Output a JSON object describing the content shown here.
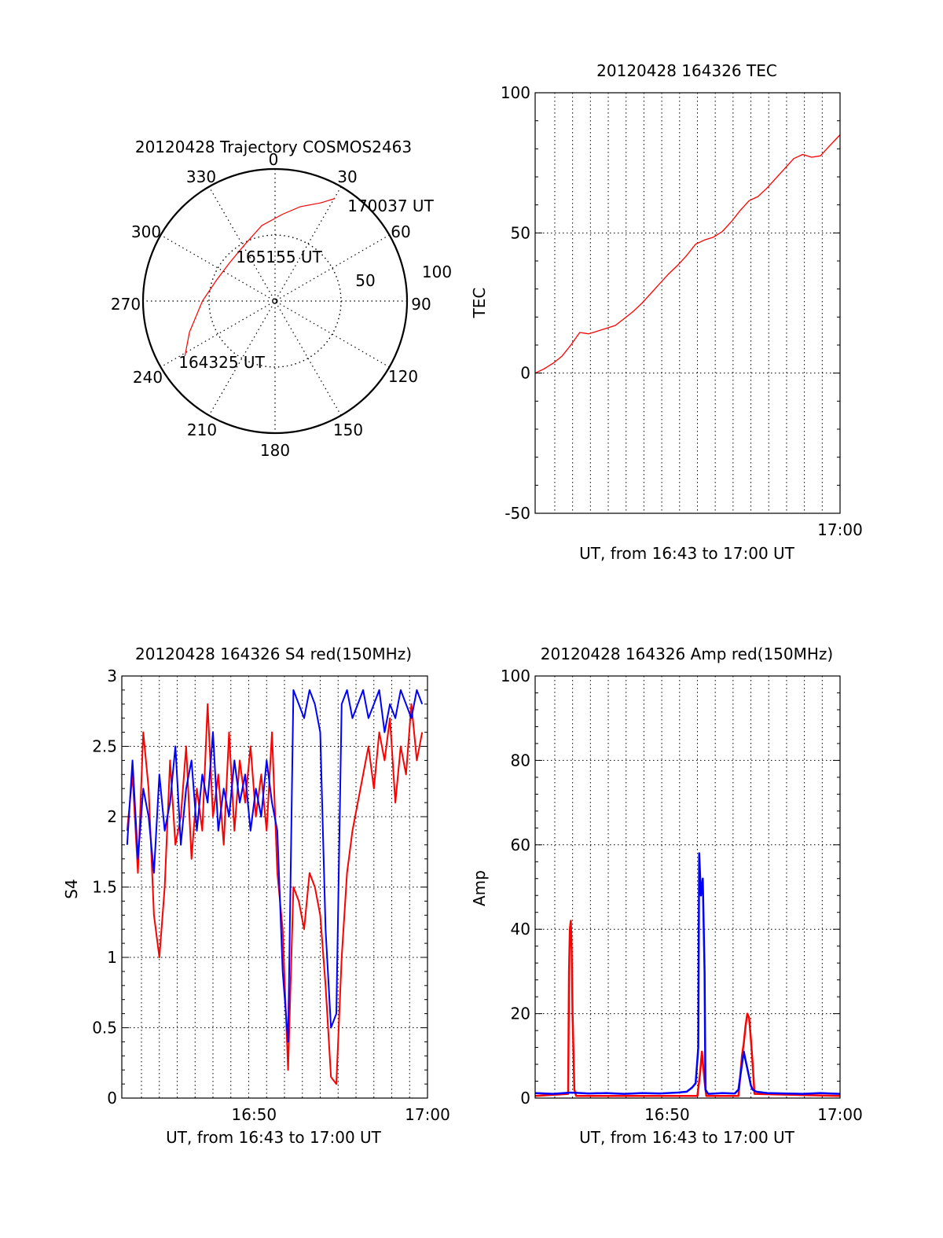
{
  "colors": {
    "red": "#ff0000",
    "blue": "#0000ff",
    "axis": "#000000",
    "grid": "#000000"
  },
  "chart_data": [
    {
      "id": "trajectory",
      "type": "polar",
      "title": "20120428 Trajectory COSMOS2463",
      "azimuth_labels": [
        "0",
        "30",
        "60",
        "90",
        "120",
        "150",
        "180",
        "210",
        "240",
        "270",
        "300",
        "330"
      ],
      "radius_labels": [
        "50",
        "100"
      ],
      "rlim": [
        0,
        100
      ],
      "grid": true,
      "series": [
        {
          "color": "#ff0000",
          "points": [
            {
              "az": 238.6,
              "r": 80
            },
            {
              "az": 250,
              "r": 69
            },
            {
              "az": 270,
              "r": 55
            },
            {
              "az": 290,
              "r": 47
            },
            {
              "az": 310,
              "r": 45
            },
            {
              "az": 330,
              "r": 48
            },
            {
              "az": 350,
              "r": 58
            },
            {
              "az": 5,
              "r": 66
            },
            {
              "az": 15,
              "r": 74
            },
            {
              "az": 25,
              "r": 82
            },
            {
              "az": 30.3,
              "r": 90
            }
          ]
        }
      ],
      "annotations": [
        {
          "text": "170037 UT",
          "az": 36,
          "r": 96
        },
        {
          "text": "165155 UT",
          "az": 352,
          "r": 34
        },
        {
          "text": "164325 UT",
          "az": 222,
          "r": 55
        }
      ]
    },
    {
      "id": "tec",
      "type": "line",
      "title": "20120428 164326 TEC",
      "xlabel": "UT, from 16:43 to 17:00 UT",
      "ylabel": "TEC",
      "xlim": [
        0,
        17.1
      ],
      "ylim": [
        -50,
        100
      ],
      "xticks": [
        {
          "x": 17.1,
          "label": "17:00"
        }
      ],
      "yticks": [
        -50,
        0,
        50,
        100
      ],
      "grid": true,
      "series": [
        {
          "color": "#ff0000",
          "x": [
            0,
            0.5,
            1,
            1.5,
            2,
            2.5,
            3,
            3.5,
            4,
            4.5,
            5,
            5.5,
            6,
            6.5,
            7,
            7.5,
            8,
            8.5,
            9,
            9.5,
            10,
            10.5,
            11,
            11.5,
            12,
            12.5,
            13,
            13.5,
            14,
            14.5,
            15,
            15.5,
            16,
            16.5,
            17.1
          ],
          "y": [
            0,
            1.5,
            3.5,
            6,
            10,
            14.5,
            14,
            15,
            16,
            17,
            19.5,
            22,
            25,
            28.5,
            32,
            35.5,
            38.5,
            42,
            46,
            47.5,
            48.5,
            50.5,
            54,
            58,
            61.5,
            63,
            66,
            69.5,
            73,
            76.5,
            78,
            77,
            77.5,
            81,
            85
          ]
        }
      ]
    },
    {
      "id": "s4",
      "type": "line",
      "title": "20120428 164326 S4 red(150MHz)",
      "xlabel": "UT, from 16:43 to 17:00 UT",
      "ylabel": "S4",
      "xlim": [
        0,
        17.1
      ],
      "ylim": [
        0,
        3
      ],
      "xticks": [
        {
          "x": 7.4,
          "label": "16:50"
        },
        {
          "x": 17.1,
          "label": "17:00"
        }
      ],
      "yticks": [
        0,
        0.5,
        1,
        1.5,
        2,
        2.5,
        3
      ],
      "grid": true,
      "series": [
        {
          "color": "#ff0000",
          "x": [
            0.3,
            0.6,
            0.9,
            1.2,
            1.5,
            1.8,
            2.1,
            2.4,
            2.7,
            3.0,
            3.3,
            3.6,
            3.9,
            4.2,
            4.5,
            4.8,
            5.1,
            5.4,
            5.7,
            6.0,
            6.3,
            6.6,
            6.9,
            7.2,
            7.5,
            7.8,
            8.1,
            8.4,
            8.7,
            9.0,
            9.3,
            9.6,
            9.9,
            10.2,
            10.5,
            10.8,
            11.1,
            11.4,
            11.7,
            12.0,
            12.3,
            12.6,
            12.9,
            13.2,
            13.5,
            13.8,
            14.1,
            14.4,
            14.7,
            15.0,
            15.3,
            15.6,
            15.9,
            16.2,
            16.5,
            16.8
          ],
          "y": [
            1.9,
            2.3,
            1.6,
            2.6,
            2.2,
            1.3,
            1.0,
            1.5,
            2.4,
            1.8,
            2.0,
            2.5,
            1.7,
            2.2,
            1.9,
            2.8,
            2.0,
            2.3,
            1.8,
            2.6,
            1.9,
            2.4,
            2.1,
            2.5,
            2.0,
            2.3,
            1.9,
            2.6,
            1.6,
            1.2,
            0.2,
            1.5,
            1.4,
            1.2,
            1.6,
            1.5,
            1.3,
            0.8,
            0.15,
            0.1,
            1.0,
            1.6,
            1.9,
            2.1,
            2.3,
            2.5,
            2.2,
            2.6,
            2.4,
            2.7,
            2.1,
            2.5,
            2.3,
            2.8,
            2.4,
            2.6
          ]
        },
        {
          "color": "#0000ff",
          "x": [
            0.3,
            0.6,
            0.9,
            1.2,
            1.5,
            1.8,
            2.1,
            2.4,
            2.7,
            3.0,
            3.3,
            3.6,
            3.9,
            4.2,
            4.5,
            4.8,
            5.1,
            5.4,
            5.7,
            6.0,
            6.3,
            6.6,
            6.9,
            7.2,
            7.5,
            7.8,
            8.1,
            8.4,
            8.7,
            9.0,
            9.3,
            9.6,
            9.9,
            10.2,
            10.5,
            10.8,
            11.1,
            11.4,
            11.7,
            12.0,
            12.3,
            12.6,
            12.9,
            13.2,
            13.5,
            13.8,
            14.1,
            14.4,
            14.7,
            15.0,
            15.3,
            15.6,
            15.9,
            16.2,
            16.5,
            16.8
          ],
          "y": [
            1.8,
            2.4,
            1.7,
            2.2,
            2.0,
            1.6,
            2.3,
            1.9,
            2.1,
            2.5,
            1.8,
            2.2,
            2.4,
            1.9,
            2.3,
            2.1,
            2.6,
            1.9,
            2.2,
            2.0,
            2.4,
            2.1,
            2.3,
            1.9,
            2.2,
            2.0,
            2.4,
            2.1,
            1.9,
            0.9,
            0.4,
            2.9,
            2.8,
            2.7,
            2.9,
            2.8,
            2.6,
            1.2,
            0.5,
            0.6,
            2.8,
            2.9,
            2.7,
            2.8,
            2.9,
            2.7,
            2.8,
            2.9,
            2.6,
            2.8,
            2.7,
            2.9,
            2.8,
            2.7,
            2.9,
            2.8
          ]
        }
      ]
    },
    {
      "id": "amp",
      "type": "line",
      "title": "20120428 164326 Amp red(150MHz)",
      "xlabel": "UT, from 16:43 to 17:00 UT",
      "ylabel": "Amp",
      "xlim": [
        0,
        17.1
      ],
      "ylim": [
        0,
        100
      ],
      "xticks": [
        {
          "x": 7.4,
          "label": "16:50"
        },
        {
          "x": 17.1,
          "label": "17:00"
        }
      ],
      "yticks": [
        0,
        20,
        40,
        60,
        80,
        100
      ],
      "grid": true,
      "series": [
        {
          "color": "#ff0000",
          "x": [
            0,
            1.85,
            1.9,
            1.95,
            2.0,
            2.05,
            2.1,
            2.2,
            2.3,
            9.1,
            9.25,
            9.35,
            9.5,
            9.6,
            11.4,
            11.5,
            11.6,
            11.7,
            11.8,
            11.9,
            12.0,
            12.1,
            12.2,
            12.3,
            17.1
          ],
          "y": [
            0.5,
            1,
            30,
            40,
            42,
            35,
            20,
            2,
            0.5,
            0.5,
            6,
            11,
            4,
            0.5,
            0.5,
            5,
            10,
            13,
            17,
            20,
            19,
            14,
            8,
            1,
            0.5
          ]
        },
        {
          "color": "#0000ff",
          "x": [
            0,
            1,
            2,
            3,
            4,
            5,
            6,
            7,
            8,
            8.5,
            8.8,
            9.0,
            9.15,
            9.2,
            9.3,
            9.4,
            9.5,
            9.55,
            9.7,
            10.5,
            11.2,
            11.4,
            11.5,
            11.6,
            11.7,
            11.8,
            11.9,
            12.0,
            12.1,
            12.2,
            12.4,
            13,
            14,
            15,
            16,
            17.1
          ],
          "y": [
            1.2,
            1.0,
            1.3,
            1.1,
            1.2,
            1.0,
            1.2,
            1.1,
            1.3,
            1.5,
            2.5,
            3.5,
            12,
            58,
            48,
            52,
            30,
            2,
            1,
            1.2,
            1.1,
            2,
            5,
            8,
            11,
            9,
            7,
            5,
            3,
            2,
            1.5,
            1.2,
            1.1,
            1.0,
            1.2,
            1.0
          ]
        }
      ]
    }
  ]
}
